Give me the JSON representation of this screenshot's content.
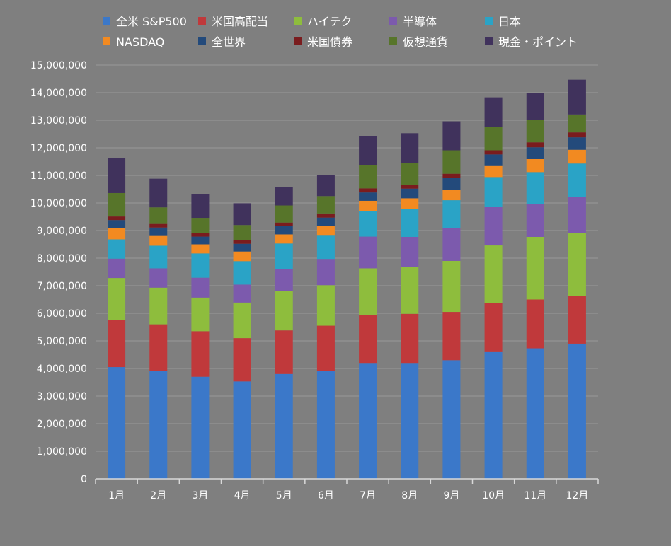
{
  "chart_data": {
    "type": "bar",
    "stacked": true,
    "title": "",
    "xlabel": "",
    "ylabel": "",
    "ylim": [
      0,
      15000000
    ],
    "ytick_step": 1000000,
    "grid": true,
    "legend_position": "top",
    "categories": [
      "1月",
      "2月",
      "3月",
      "4月",
      "5月",
      "6月",
      "7月",
      "8月",
      "9月",
      "10月",
      "11月",
      "12月"
    ],
    "series": [
      {
        "name": "全米 S&P500",
        "color": "#3b78c9",
        "values": [
          4050000,
          3900000,
          3700000,
          3530000,
          3800000,
          3920000,
          4200000,
          4200000,
          4300000,
          4620000,
          4730000,
          4900000
        ]
      },
      {
        "name": "米国高配当",
        "color": "#c0393b",
        "values": [
          1700000,
          1700000,
          1650000,
          1570000,
          1580000,
          1630000,
          1750000,
          1780000,
          1750000,
          1740000,
          1770000,
          1740000
        ]
      },
      {
        "name": "ハイテク",
        "color": "#8ebd3d",
        "values": [
          1530000,
          1330000,
          1220000,
          1290000,
          1430000,
          1470000,
          1680000,
          1710000,
          1850000,
          2100000,
          2270000,
          2270000
        ]
      },
      {
        "name": "半導体",
        "color": "#7c5aad",
        "values": [
          700000,
          700000,
          720000,
          650000,
          780000,
          950000,
          1150000,
          1080000,
          1180000,
          1400000,
          1200000,
          1320000
        ]
      },
      {
        "name": "日本",
        "color": "#2aa3c6",
        "values": [
          700000,
          820000,
          880000,
          850000,
          940000,
          870000,
          920000,
          1020000,
          1020000,
          1080000,
          1150000,
          1200000
        ]
      },
      {
        "name": "NASDAQ",
        "color": "#f28a21",
        "values": [
          400000,
          380000,
          330000,
          350000,
          330000,
          330000,
          380000,
          380000,
          380000,
          400000,
          470000,
          500000
        ]
      },
      {
        "name": "全世界",
        "color": "#234a7b",
        "values": [
          300000,
          280000,
          280000,
          280000,
          300000,
          300000,
          300000,
          350000,
          430000,
          420000,
          430000,
          450000
        ]
      },
      {
        "name": "米国債券",
        "color": "#7a1c1e",
        "values": [
          130000,
          130000,
          130000,
          130000,
          130000,
          150000,
          150000,
          130000,
          150000,
          150000,
          180000,
          180000
        ]
      },
      {
        "name": "仮想通貨",
        "color": "#57752a",
        "values": [
          850000,
          600000,
          550000,
          550000,
          620000,
          630000,
          850000,
          800000,
          850000,
          850000,
          800000,
          650000
        ]
      },
      {
        "name": "現金・ポイント",
        "color": "#40325c",
        "values": [
          1270000,
          1040000,
          850000,
          790000,
          670000,
          750000,
          1050000,
          1080000,
          1050000,
          1070000,
          1000000,
          1260000
        ]
      }
    ]
  }
}
